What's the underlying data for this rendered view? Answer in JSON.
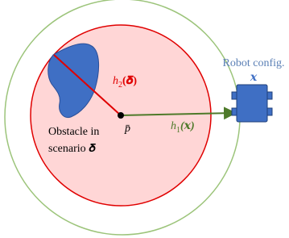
{
  "robot_label": {
    "line1": "Robot config.",
    "symbol": "𝒙"
  },
  "h2_label": {
    "base": "h",
    "sub": "2",
    "arg": "(𝜹)"
  },
  "center_label": "p̄",
  "h1_label": {
    "base": "h",
    "sub": "1",
    "arg": "(𝒙)"
  },
  "obstacle_label": {
    "line1": "Obstacle in",
    "line2": "scenario 𝜹"
  }
}
